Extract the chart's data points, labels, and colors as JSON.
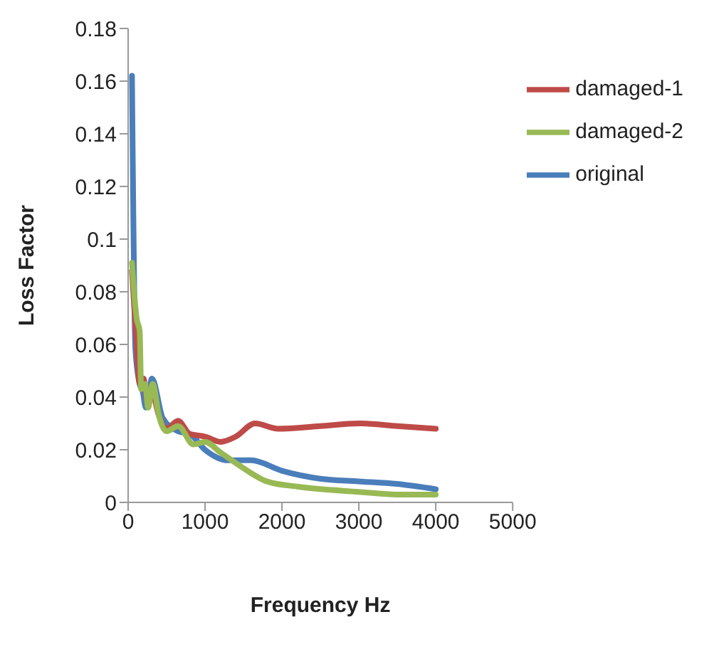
{
  "chart_data": {
    "type": "line",
    "xlabel": "Frequency Hz",
    "ylabel": "Loss Factor",
    "xlim": [
      0,
      5000
    ],
    "xticks": [
      0,
      1000,
      2000,
      3000,
      4000,
      5000
    ],
    "ylim": [
      0,
      0.18
    ],
    "yticks": [
      0,
      0.02,
      0.04,
      0.06,
      0.08,
      0.1,
      0.12,
      0.14,
      0.16,
      0.18
    ],
    "grid": false,
    "legend": "top right",
    "marker": "none",
    "line_style": "solid",
    "series": [
      {
        "name": "original",
        "color": "#4a7ebb",
        "x": [
          50,
          95,
          150,
          190,
          230,
          310,
          450,
          650,
          800,
          1000,
          1300,
          1600,
          2000,
          2500,
          3000,
          3500,
          4000
        ],
        "values": [
          0.162,
          0.058,
          0.045,
          0.042,
          0.036,
          0.047,
          0.032,
          0.027,
          0.026,
          0.02,
          0.016,
          0.016,
          0.012,
          0.009,
          0.008,
          0.007,
          0.005
        ]
      },
      {
        "name": "damaged-1",
        "color": "#be4b48",
        "x": [
          50,
          100,
          150,
          200,
          250,
          300,
          400,
          500,
          650,
          800,
          1000,
          1200,
          1400,
          1650,
          1950,
          2500,
          3000,
          3500,
          4000
        ],
        "values": [
          0.088,
          0.065,
          0.045,
          0.047,
          0.038,
          0.043,
          0.033,
          0.028,
          0.031,
          0.026,
          0.025,
          0.023,
          0.025,
          0.03,
          0.028,
          0.029,
          0.03,
          0.029,
          0.028
        ]
      },
      {
        "name": "damaged-2",
        "color": "#98b954",
        "x": [
          50,
          110,
          150,
          170,
          220,
          260,
          320,
          400,
          500,
          650,
          850,
          1000,
          1200,
          1500,
          1800,
          2200,
          3000,
          3500,
          4000
        ],
        "values": [
          0.091,
          0.07,
          0.065,
          0.043,
          0.045,
          0.036,
          0.045,
          0.033,
          0.027,
          0.029,
          0.022,
          0.023,
          0.019,
          0.013,
          0.008,
          0.006,
          0.004,
          0.003,
          0.003
        ]
      }
    ]
  }
}
